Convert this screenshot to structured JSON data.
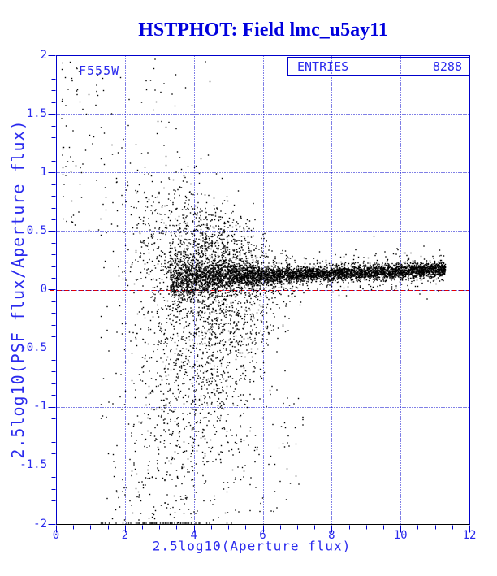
{
  "chart_data": {
    "type": "scatter",
    "title": "HSTPHOT: Field lmc_u5ay11",
    "filter_label": "F555W",
    "legend_box": {
      "label": "ENTRIES",
      "value": "8288"
    },
    "entries": 8288,
    "xlabel": "2.5log10(Aperture flux)",
    "ylabel": "2.5log10(PSF flux/Aperture flux)",
    "xlim": [
      0,
      12
    ],
    "ylim": [
      -2,
      2
    ],
    "x_major_ticks": [
      0,
      2,
      4,
      6,
      8,
      10,
      12
    ],
    "x_tick_labels": [
      "0",
      "2",
      "4",
      "6",
      "8",
      "10",
      "12"
    ],
    "x_minor_step": 0.5,
    "y_major_ticks": [
      2,
      1.5,
      1,
      0.5,
      0,
      -0.5,
      -1,
      -1.5,
      -2
    ],
    "y_tick_labels": [
      "2",
      "1.5",
      "1",
      "0.5",
      "0",
      "-0.5",
      "-1",
      "-1.5",
      "-2"
    ],
    "y_minor_step": 0.1,
    "grid": {
      "style": "dotted",
      "x_lines": [
        2,
        4,
        6,
        8,
        10
      ],
      "y_lines": [
        1.5,
        1,
        0.5,
        0,
        -0.5,
        -1,
        -1.5
      ]
    },
    "ref_line": {
      "y": 0,
      "style": "dashed",
      "color": "#e80000"
    },
    "colors": {
      "title": "#0000dd",
      "axis_text": "#2a2aee",
      "frame": "#0000cc",
      "grid": "#0000cc",
      "ticks": "#0000cc",
      "bottom_axis": "#000000",
      "points": "#000000",
      "box_border": "#0000cc",
      "background": "#ffffff"
    },
    "point_model": {
      "seed": 20011,
      "components": [
        {
          "name": "psf-aperture-band",
          "kind": "band",
          "n": 5100,
          "x_range": [
            3.3,
            11.3
          ],
          "mu": [
            0.06,
            0.01
          ],
          "sigma": [
            0.16,
            -0.02
          ],
          "sigma_min": 0.03,
          "fuzz_frac": 0.12,
          "fuzz_mult": 3
        },
        {
          "name": "low-flux-funnel",
          "kind": "funnel",
          "n": 2900,
          "x_mean": 4.3,
          "x_sd": 1.15,
          "x_clip": [
            1.3,
            9.6
          ],
          "mu": [
            0.06,
            0.01
          ],
          "sigma_neg": [
            2.0,
            -0.26
          ],
          "sigma_neg_clip": [
            0.08,
            1.8
          ],
          "pos_frac": 0.42,
          "pos_scale": 0.38
        },
        {
          "name": "bright-outliers-top",
          "kind": "uniform",
          "n": 140,
          "x_range": [
            0.15,
            4.6
          ],
          "x_pow": 2,
          "y_range": [
            0.45,
            1.97
          ]
        },
        {
          "name": "faint-outliers-deep",
          "kind": "uniform",
          "n": 148,
          "x_range": [
            1.6,
            7.2
          ],
          "x_pow": 1,
          "y_range": [
            -1.97,
            -0.85
          ]
        }
      ]
    }
  }
}
